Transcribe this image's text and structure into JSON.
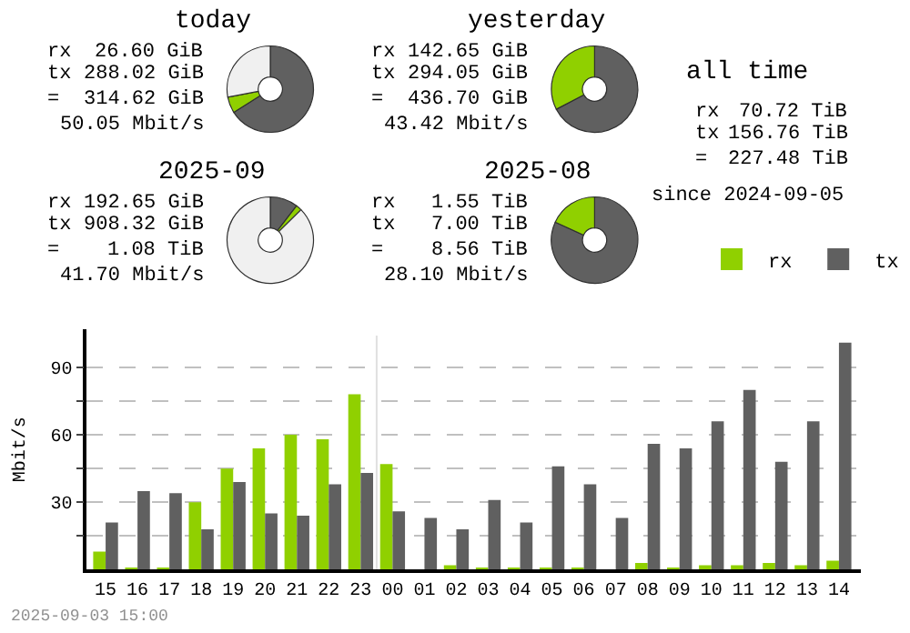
{
  "chart_data": [
    {
      "type": "donut",
      "title": "today",
      "categories": [
        null,
        null,
        null
      ],
      "values": [
        65.95,
        6.09,
        27.96
      ],
      "colors": [
        "#606060",
        "#90d000",
        "#f0f0f0"
      ],
      "annotations": [
        "rx",
        "26.60 GiB",
        "tx",
        "288.02 GiB",
        "=",
        "314.62 GiB",
        "50.05 Mbit/s"
      ]
    },
    {
      "type": "donut",
      "title": "yesterday",
      "categories": [
        null,
        null
      ],
      "values": [
        67.3,
        32.7
      ],
      "colors": [
        "#606060",
        "#90d000"
      ],
      "annotations": [
        "rx",
        "142.65 GiB",
        "tx",
        "294.05 GiB",
        "=",
        "436.70 GiB",
        "43.42 Mbit/s"
      ]
    },
    {
      "type": "donut",
      "title": "2025-09",
      "categories": [
        null,
        null,
        null
      ],
      "values": [
        10.4,
        2.2,
        87.4
      ],
      "colors": [
        "#606060",
        "#90d000",
        "#f0f0f0"
      ],
      "annotations": [
        "rx",
        "192.65 GiB",
        "tx",
        "908.32 GiB",
        "=",
        "1.08 TiB",
        "41.70 Mbit/s"
      ]
    },
    {
      "type": "donut",
      "title": "2025-08",
      "categories": [
        null,
        null
      ],
      "values": [
        81.8,
        18.2
      ],
      "colors": [
        "#606060",
        "#90d000"
      ],
      "annotations": [
        "rx",
        "1.55 TiB",
        "tx",
        "7.00 TiB",
        "=",
        "8.56 TiB",
        "28.10 Mbit/s"
      ]
    },
    {
      "type": "other",
      "title": "all time",
      "annotations": [
        "rx",
        "70.72 TiB",
        "tx",
        "156.76 TiB",
        "=",
        "227.48 TiB",
        "since 2024-09-05"
      ]
    },
    {
      "type": "bar",
      "ylabel": "Mbit/s",
      "categories": [
        "15",
        "16",
        "17",
        "18",
        "19",
        "20",
        "21",
        "22",
        "23",
        "00",
        "01",
        "02",
        "03",
        "04",
        "05",
        "06",
        "07",
        "08",
        "09",
        "10",
        "11",
        "12",
        "13",
        "14"
      ],
      "series": [
        {
          "name": "rx",
          "color": "#90d000",
          "values": [
            8,
            1,
            1,
            30,
            45,
            54,
            60,
            58,
            78,
            47,
            0,
            2,
            1,
            1,
            1,
            1,
            0,
            3,
            1,
            2,
            2,
            3,
            2,
            4
          ]
        },
        {
          "name": "tx",
          "color": "#606060",
          "values": [
            21,
            35,
            34,
            18,
            39,
            25,
            24,
            38,
            43,
            26,
            23,
            18,
            31,
            21,
            46,
            38,
            23,
            56,
            54,
            66,
            80,
            48,
            66,
            101
          ]
        }
      ],
      "ylim": [
        0,
        107
      ],
      "yticks": [
        {
          "value": 15,
          "label": null
        },
        30,
        {
          "value": 45,
          "label": null
        },
        60,
        {
          "value": 75,
          "label": null
        },
        90
      ],
      "grid": "y",
      "legend": "top right",
      "ref_lines": [
        {
          "axis": "x",
          "value": "00",
          "color": "#e0e0e0"
        }
      ],
      "annotations": [
        "2025-09-03 15:00"
      ]
    }
  ]
}
